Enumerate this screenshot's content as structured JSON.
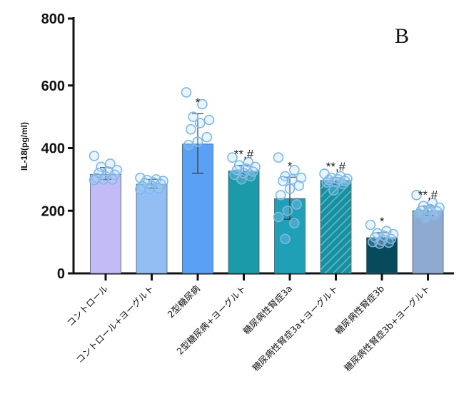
{
  "chart_data": {
    "type": "bar",
    "title": "",
    "panel_label": "B",
    "xlabel": "",
    "ylabel": "IL-18(pg/ml)",
    "ylim": [
      0,
      800
    ],
    "yticks": [
      0,
      200,
      400,
      600,
      800
    ],
    "grid": false,
    "categories": [
      "コントロール",
      "コントロール+ヨーグルト",
      "2型糖尿病",
      "2型糖尿病+ヨーグルト",
      "糖尿病性腎症3a",
      "糖尿病性腎症3a+ヨーグルト",
      "糖尿病性腎症3b",
      "糖尿病性腎症3b+ヨーグルト"
    ],
    "values": [
      316,
      285,
      413,
      327,
      239,
      297,
      114,
      200
    ],
    "error_low": [
      300,
      272,
      320,
      310,
      173,
      285,
      100,
      185
    ],
    "error_high": [
      338,
      300,
      510,
      345,
      307,
      305,
      130,
      215
    ],
    "annotations": [
      "",
      "",
      "*",
      "**,#",
      "*",
      "**,#",
      "*",
      "**,#"
    ],
    "colors": [
      "#c3bbf5",
      "#92bef3",
      "#5aa0f4",
      "#1b9aa9",
      "#20a0b6",
      "#1a8fa0",
      "#064a5c",
      "#8faad2"
    ],
    "hatched": [
      false,
      false,
      false,
      false,
      false,
      true,
      false,
      false
    ],
    "points": [
      [
        375,
        350,
        340,
        330,
        325,
        320,
        315,
        310,
        305,
        300,
        300,
        298
      ],
      [
        305,
        300,
        298,
        295,
        290,
        288,
        285,
        280,
        278,
        272,
        270,
        268
      ],
      [
        578,
        540,
        500,
        490,
        480,
        460,
        435,
        420,
        410
      ],
      [
        370,
        355,
        345,
        340,
        335,
        330,
        325,
        320,
        315,
        310,
        300
      ],
      [
        370,
        330,
        310,
        305,
        300,
        295,
        280,
        270,
        250,
        220,
        200,
        180,
        160,
        110
      ],
      [
        318,
        310,
        305,
        302,
        300,
        298,
        295,
        292,
        290,
        285,
        265
      ],
      [
        155,
        135,
        128,
        125,
        120,
        115,
        110,
        105,
        100,
        98,
        95
      ],
      [
        250,
        225,
        215,
        210,
        205,
        200,
        198,
        195,
        190,
        185,
        175
      ]
    ]
  }
}
